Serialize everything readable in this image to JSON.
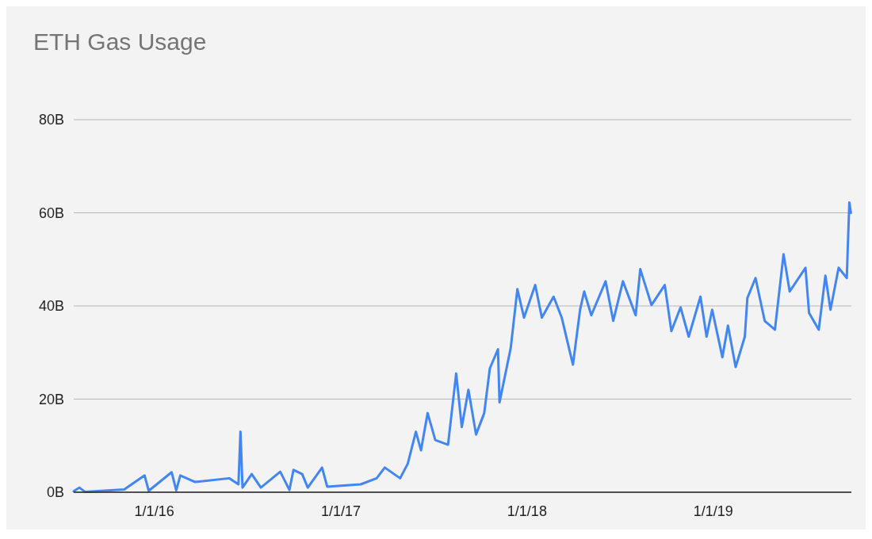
{
  "chart_data": {
    "type": "line",
    "title": "ETH Gas Usage",
    "grid": "y",
    "marker": "none",
    "line_style": "solid",
    "xlim": [
      "2015-07-27",
      "2019-09-29"
    ],
    "xticks": [
      {
        "value": "2016-01-01",
        "label": "1/1/16"
      },
      {
        "value": "2017-01-01",
        "label": "1/1/17"
      },
      {
        "value": "2018-01-01",
        "label": "1/1/18"
      },
      {
        "value": "2019-01-01",
        "label": "1/1/19"
      }
    ],
    "ylim": [
      0,
      80
    ],
    "yticks": [
      {
        "value": 0,
        "label": "0B"
      },
      {
        "value": 20,
        "label": "20B"
      },
      {
        "value": 40,
        "label": "40B"
      },
      {
        "value": 60,
        "label": "60B"
      },
      {
        "value": 80,
        "label": "80B"
      }
    ],
    "x": [
      "2015-07-27",
      "2015-08-07",
      "2015-08-18",
      "2015-11-03",
      "2015-12-13",
      "2015-12-21",
      "2016-02-04",
      "2016-02-13",
      "2016-02-21",
      "2016-03-21",
      "2016-05-27",
      "2016-06-14",
      "2016-06-18",
      "2016-06-22",
      "2016-07-10",
      "2016-07-28",
      "2016-09-04",
      "2016-09-22",
      "2016-09-30",
      "2016-10-17",
      "2016-10-28",
      "2016-11-25",
      "2016-12-05",
      "2017-02-09",
      "2017-03-12",
      "2017-03-28",
      "2017-04-27",
      "2017-05-12",
      "2017-05-28",
      "2017-06-07",
      "2017-06-20",
      "2017-07-05",
      "2017-07-30",
      "2017-08-15",
      "2017-08-26",
      "2017-09-08",
      "2017-09-23",
      "2017-10-09",
      "2017-10-20",
      "2017-11-05",
      "2017-11-08",
      "2017-11-30",
      "2017-12-13",
      "2017-12-26",
      "2018-01-17",
      "2018-01-30",
      "2018-02-22",
      "2018-03-10",
      "2018-03-21",
      "2018-04-01",
      "2018-04-15",
      "2018-04-23",
      "2018-05-07",
      "2018-06-04",
      "2018-06-19",
      "2018-07-08",
      "2018-08-02",
      "2018-08-11",
      "2018-09-02",
      "2018-09-28",
      "2018-10-11",
      "2018-10-29",
      "2018-11-14",
      "2018-12-07",
      "2018-12-19",
      "2018-12-30",
      "2019-01-19",
      "2019-01-30",
      "2019-02-14",
      "2019-03-04",
      "2019-03-09",
      "2019-03-25",
      "2019-04-12",
      "2019-05-02",
      "2019-05-19",
      "2019-05-31",
      "2019-07-01",
      "2019-07-08",
      "2019-07-27",
      "2019-08-09",
      "2019-08-19",
      "2019-09-04",
      "2019-09-20",
      "2019-09-22",
      "2019-09-25",
      "2019-09-28"
    ],
    "series": [
      {
        "color": "#4285f4",
        "values": [
          0.2,
          1,
          0.1,
          0.6,
          3.6,
          0.3,
          4.3,
          0.4,
          3.6,
          2.2,
          3,
          1.7,
          13,
          1,
          3.9,
          1,
          4.4,
          0.5,
          4.8,
          3.9,
          1,
          5.3,
          1.2,
          1.7,
          3,
          5.3,
          3,
          6.1,
          13,
          9,
          17,
          11.2,
          10.2,
          25.5,
          14,
          22,
          12.4,
          17,
          26.6,
          30.7,
          19.3,
          31,
          43.6,
          37.5,
          44.5,
          37.5,
          42,
          37.5,
          32.4,
          27.4,
          39.2,
          43.1,
          38,
          45.3,
          36.8,
          45.3,
          38,
          47.9,
          40.2,
          44.5,
          34.6,
          39.7,
          33.4,
          42,
          33.4,
          39.2,
          29,
          35.8,
          26.9,
          33.4,
          41.7,
          46,
          36.8,
          34.9,
          51.1,
          43.1,
          48.2,
          38.5,
          34.9,
          46.5,
          39.2,
          48.2,
          46,
          52.8,
          62.2,
          60
        ]
      }
    ]
  }
}
